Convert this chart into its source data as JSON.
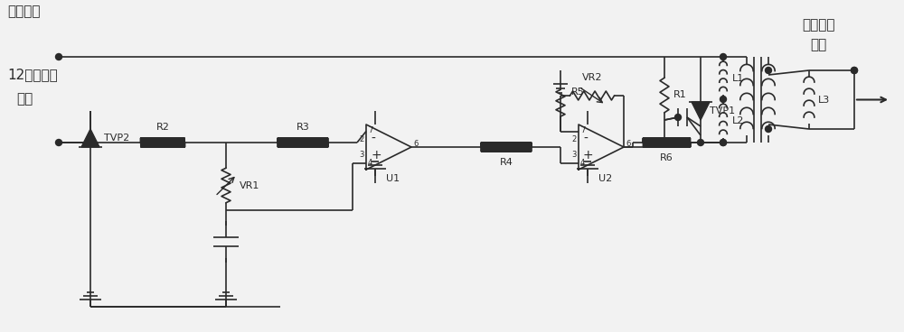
{
  "bg_color": "#f2f2f2",
  "line_color": "#2a2a2a",
  "label_ce": "实测信号",
  "label_12p_1": "12脉动干扰",
  "label_12p_2": "信号",
  "label_pd_1": "局部放电",
  "label_pd_2": "信号"
}
